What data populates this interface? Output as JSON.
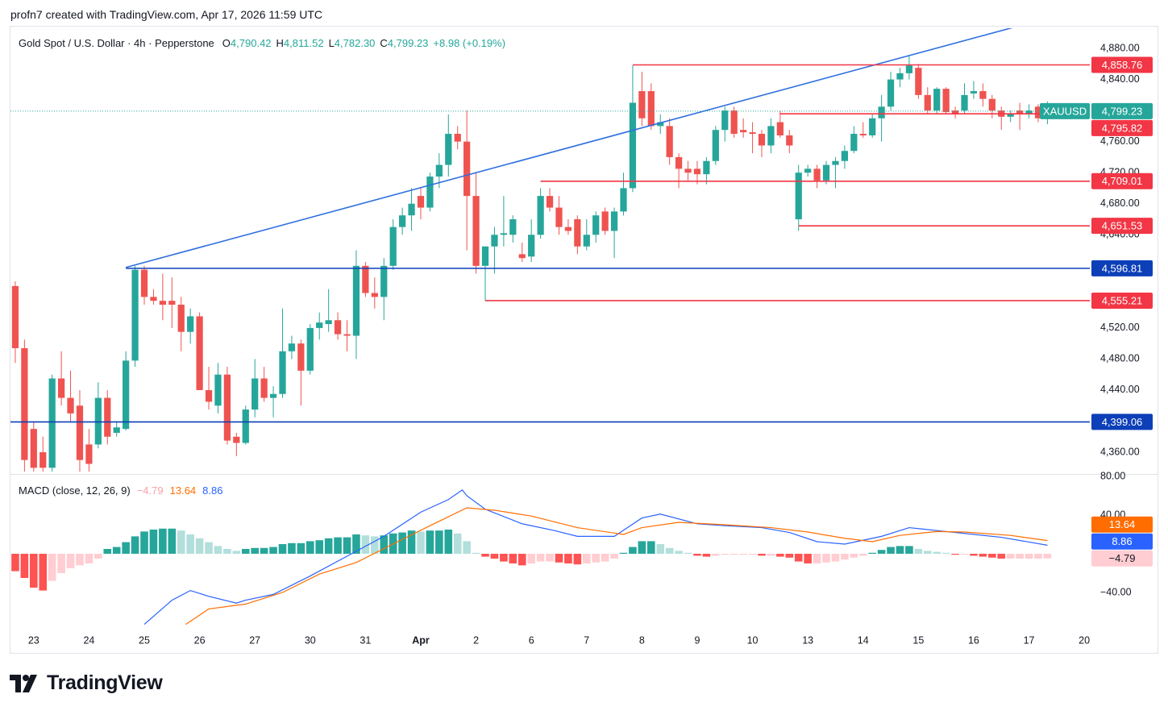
{
  "header": {
    "attribution": "profn7 created with TradingView.com, Apr 17, 2026 11:59 UTC",
    "logo": "TradingView"
  },
  "chart_data": [
    {
      "type": "candlestick",
      "title": "Gold Spot / U.S. Dollar · 4h · Pepperstone",
      "ohlc": [
        {
          "label": "O",
          "value": "4,790.42"
        },
        {
          "label": "H",
          "value": "4,811.52"
        },
        {
          "label": "L",
          "value": "4,782.30"
        },
        {
          "label": "C",
          "value": "4,799.23"
        }
      ],
      "change": "+8.98 (+0.19%)",
      "x": [
        0,
        1,
        2,
        3,
        4,
        5,
        6,
        7,
        8,
        9,
        10,
        11,
        12,
        13,
        14,
        15,
        16,
        17,
        18,
        19,
        20,
        21,
        22,
        23,
        24,
        25,
        26,
        27,
        28,
        29,
        30,
        31,
        32,
        33,
        34,
        35,
        36,
        37,
        38,
        39,
        40,
        41,
        42,
        43,
        44,
        45,
        46,
        47,
        48,
        49,
        50,
        51,
        52,
        53,
        54,
        55,
        56,
        57,
        58,
        59,
        60,
        61,
        62,
        63,
        64,
        65,
        66,
        67,
        68,
        69,
        70,
        71,
        72,
        73,
        74,
        75,
        76,
        77,
        78,
        79,
        80,
        81,
        82,
        83,
        84,
        85,
        86,
        87,
        88,
        89,
        90,
        91,
        92,
        93,
        94,
        95,
        96,
        97,
        98,
        99,
        100,
        101,
        102,
        103,
        104,
        105,
        106,
        107,
        108,
        109,
        110,
        111,
        112
      ],
      "open": [
        4574,
        4494,
        4390,
        4360,
        4340,
        4455,
        4430,
        4420,
        4370,
        4370,
        4430,
        4385,
        4390,
        4478,
        4595,
        4560,
        4555,
        4555,
        4550,
        4515,
        4535,
        4440,
        4420,
        4460,
        4380,
        4372,
        4415,
        4455,
        4430,
        4435,
        4490,
        4500,
        4465,
        4520,
        4525,
        4530,
        4512,
        4510,
        4600,
        4565,
        4560,
        4600,
        4650,
        4665,
        4690,
        4675,
        4715,
        4730,
        4770,
        4760,
        4690,
        4600,
        4625,
        4640,
        4640,
        4615,
        4612,
        4640,
        4690,
        4675,
        4650,
        4660,
        4625,
        4640,
        4670,
        4645,
        4670,
        4700,
        4825,
        4825,
        4780,
        4780,
        4740,
        4725,
        4725,
        4718,
        4735,
        4775,
        4800,
        4775,
        4772,
        4770,
        4755,
        4785,
        4768,
        4660,
        4720,
        4725,
        4710,
        4730,
        4735,
        4748,
        4770,
        4768,
        4790,
        4805,
        4840,
        4848,
        4855,
        4820,
        4800,
        4828,
        4800,
        4800,
        4822,
        4825,
        4815,
        4800,
        4792,
        4800,
        4795,
        4805,
        4790.42
      ],
      "high": [
        4580,
        4505,
        4400,
        4380,
        4460,
        4490,
        4465,
        4440,
        4390,
        4450,
        4440,
        4400,
        4490,
        4600,
        4600,
        4570,
        4590,
        4585,
        4560,
        4545,
        4540,
        4470,
        4475,
        4470,
        4385,
        4420,
        4480,
        4470,
        4445,
        4545,
        4510,
        4505,
        4525,
        4540,
        4570,
        4540,
        4530,
        4620,
        4605,
        4585,
        4610,
        4660,
        4675,
        4700,
        4700,
        4720,
        4745,
        4795,
        4780,
        4800,
        4720,
        4625,
        4650,
        4690,
        4665,
        4630,
        4660,
        4700,
        4700,
        4690,
        4660,
        4665,
        4660,
        4670,
        4675,
        4675,
        4720,
        4858,
        4850,
        4835,
        4795,
        4790,
        4745,
        4735,
        4735,
        4740,
        4780,
        4805,
        4805,
        4790,
        4785,
        4775,
        4790,
        4800,
        4775,
        4730,
        4730,
        4730,
        4735,
        4740,
        4755,
        4780,
        4785,
        4795,
        4820,
        4850,
        4855,
        4870,
        4860,
        4830,
        4830,
        4830,
        4805,
        4835,
        4838,
        4835,
        4820,
        4805,
        4800,
        4810,
        4808,
        4808,
        4811.52
      ],
      "low": [
        4475,
        4335,
        4335,
        4335,
        4335,
        4420,
        4400,
        4335,
        4335,
        4365,
        4370,
        4380,
        4388,
        4470,
        4550,
        4550,
        4530,
        4520,
        4490,
        4500,
        4440,
        4415,
        4410,
        4370,
        4355,
        4370,
        4405,
        4425,
        4405,
        4430,
        4480,
        4420,
        4460,
        4505,
        4515,
        4505,
        4490,
        4480,
        4560,
        4545,
        4530,
        4595,
        4640,
        4645,
        4660,
        4670,
        4700,
        4715,
        4750,
        4620,
        4590,
        4555,
        4590,
        4625,
        4630,
        4605,
        4605,
        4635,
        4670,
        4640,
        4640,
        4615,
        4620,
        4630,
        4640,
        4610,
        4665,
        4695,
        4780,
        4775,
        4770,
        4730,
        4700,
        4710,
        4705,
        4705,
        4730,
        4760,
        4765,
        4765,
        4745,
        4740,
        4745,
        4765,
        4745,
        4645,
        4715,
        4700,
        4705,
        4700,
        4725,
        4745,
        4765,
        4765,
        4760,
        4800,
        4830,
        4840,
        4815,
        4795,
        4795,
        4795,
        4790,
        4795,
        4815,
        4805,
        4790,
        4775,
        4785,
        4775,
        4790,
        4785,
        4782.3
      ],
      "close": [
        4494,
        4350,
        4340,
        4340,
        4455,
        4430,
        4410,
        4350,
        4345,
        4430,
        4380,
        4392,
        4478,
        4595,
        4560,
        4555,
        4550,
        4550,
        4515,
        4535,
        4440,
        4425,
        4460,
        4375,
        4372,
        4415,
        4455,
        4430,
        4435,
        4490,
        4500,
        4465,
        4520,
        4527,
        4530,
        4512,
        4510,
        4600,
        4565,
        4560,
        4600,
        4650,
        4665,
        4680,
        4675,
        4715,
        4730,
        4770,
        4760,
        4690,
        4600,
        4625,
        4640,
        4642,
        4660,
        4610,
        4640,
        4690,
        4675,
        4650,
        4645,
        4625,
        4640,
        4665,
        4645,
        4670,
        4700,
        4810,
        4790,
        4780,
        4785,
        4740,
        4725,
        4720,
        4718,
        4735,
        4775,
        4800,
        4770,
        4772,
        4770,
        4755,
        4780,
        4768,
        4755,
        4720,
        4725,
        4710,
        4730,
        4735,
        4748,
        4770,
        4768,
        4790,
        4805,
        4840,
        4848,
        4858,
        4820,
        4800,
        4828,
        4798,
        4795,
        4820,
        4825,
        4815,
        4800,
        4792,
        4795,
        4795,
        4800,
        4790,
        4799.23
      ],
      "up_color": "#26a69a",
      "down_color": "#ef5350",
      "xlim": [
        -0.52,
        116.6
      ],
      "ylim": [
        4332,
        4906
      ],
      "xticks": [
        {
          "value": 2,
          "label": "23"
        },
        {
          "value": 8,
          "label": "24"
        },
        {
          "value": 14,
          "label": "25"
        },
        {
          "value": 20,
          "label": "26"
        },
        {
          "value": 26,
          "label": "27"
        },
        {
          "value": 32,
          "label": "30"
        },
        {
          "value": 38,
          "label": "31"
        },
        {
          "value": 44,
          "label": "Apr"
        },
        {
          "value": 50,
          "label": "2"
        },
        {
          "value": 56,
          "label": "6"
        },
        {
          "value": 62,
          "label": "7"
        },
        {
          "value": 68,
          "label": "8"
        },
        {
          "value": 74,
          "label": "9"
        },
        {
          "value": 80,
          "label": "10"
        },
        {
          "value": 86,
          "label": "13"
        },
        {
          "value": 92,
          "label": "14"
        },
        {
          "value": 98,
          "label": "15"
        },
        {
          "value": 104,
          "label": "16"
        },
        {
          "value": 110,
          "label": "17"
        },
        {
          "value": 116,
          "label": "20"
        }
      ],
      "yticks": [
        {
          "value": 4360,
          "label": "4,360.00"
        },
        {
          "value": 4440,
          "label": "4,440.00"
        },
        {
          "value": 4480,
          "label": "4,480.00"
        },
        {
          "value": 4520,
          "label": "4,520.00"
        },
        {
          "value": 4640,
          "label": "4,640.00"
        },
        {
          "value": 4680,
          "label": "4,680.00"
        },
        {
          "value": 4720,
          "label": "4,720.00"
        },
        {
          "value": 4760,
          "label": "4,760.00"
        },
        {
          "value": 4840,
          "label": "4,840.00"
        },
        {
          "value": 4880,
          "label": "4,880.00"
        }
      ],
      "levels": [
        {
          "value": 4858.76,
          "label": "4,858.76",
          "color": "#f23645",
          "x": 67
        },
        {
          "value": 4795.82,
          "label": "4,795.82",
          "color": "#f23645",
          "x": 83
        },
        {
          "value": 4709.01,
          "label": "4,709.01",
          "color": "#f23645",
          "x": 57
        },
        {
          "value": 4651.53,
          "label": "4,651.53",
          "color": "#f23645",
          "x": 85
        },
        {
          "value": 4596.81,
          "label": "4,596.81",
          "color": "#0c3fb8",
          "x": 12
        },
        {
          "value": 4555.21,
          "label": "4,555.21",
          "color": "#f23645",
          "x": 51
        },
        {
          "value": 4399.06,
          "label": "4,399.06",
          "color": "#0c3fb8",
          "x": -0.52
        }
      ],
      "trendline": {
        "x": [
          12,
          108.6
        ],
        "values": [
          4598,
          4908
        ],
        "color": "#2f6fe0"
      },
      "last": {
        "symbol": "XAUUSD",
        "value": 4799.23,
        "label": "4,799.23",
        "color": "#26a69a"
      }
    },
    {
      "type": "macd",
      "title": "MACD (close, 12, 26, 9)",
      "ylim": [
        -77.5,
        80.8
      ],
      "yticks": [
        {
          "value": 80,
          "label": "80.00"
        },
        {
          "value": 40,
          "label": "40.00"
        },
        {
          "value": -40,
          "label": "−40.00"
        }
      ],
      "histogram": {
        "values": [
          -18,
          -25,
          -35,
          -38,
          -28,
          -20,
          -15,
          -12,
          -10,
          -5,
          5,
          7,
          12,
          18,
          23,
          25,
          26,
          26,
          24,
          20,
          16,
          12,
          8,
          5,
          3,
          5,
          6,
          6,
          7,
          10,
          11,
          11,
          13,
          14,
          16,
          17,
          17,
          20,
          19,
          18,
          19,
          21,
          22,
          24,
          23,
          24,
          24,
          25,
          21,
          13,
          1,
          -3,
          -5,
          -8,
          -10,
          -12,
          -10,
          -8,
          -8,
          -9,
          -10,
          -11,
          -10,
          -9,
          -8,
          -5,
          1,
          7,
          13,
          13,
          10,
          6,
          3,
          1,
          -2,
          -3,
          -2,
          -1,
          -1,
          -1,
          -1,
          -2,
          -2,
          -3,
          -4,
          -8,
          -10,
          -10,
          -9,
          -8,
          -6,
          -4,
          -2,
          1,
          4,
          7,
          8,
          8,
          5,
          3,
          2,
          1,
          -1,
          -1,
          -2,
          -3,
          -4,
          -5,
          -5,
          -5,
          -5,
          -5,
          -4.79
        ],
        "last_label": "−4.79",
        "label_color": "#ffcdd2",
        "text_color": "#f7a1a8",
        "colors": {
          "grow_above": "#26a69a",
          "fall_above": "#b2dfdb",
          "grow_below": "#ffcdd2",
          "fall_below": "#ff5252"
        }
      },
      "series": [
        {
          "color": "#2962ff",
          "last_label": "8.86",
          "x": [
            14,
            17,
            19,
            21,
            24,
            25,
            28,
            32,
            36,
            40,
            44,
            47,
            48.5,
            49,
            51,
            55,
            58.5,
            61,
            65,
            68,
            70,
            74,
            77,
            81,
            84,
            87,
            90,
            94,
            97,
            100,
            103,
            107,
            112
          ],
          "values": [
            -73,
            -48,
            -38,
            -44,
            -51,
            -48,
            -42,
            -23,
            -2.5,
            18,
            43,
            56,
            66,
            60,
            46,
            31,
            24,
            18,
            18,
            37,
            41,
            31,
            29,
            27,
            22,
            12.5,
            10,
            18,
            27,
            24,
            21,
            17,
            8.86
          ]
        },
        {
          "color": "#ff6d00",
          "last_label": "13.64",
          "x": [
            18.5,
            21,
            25,
            29,
            33,
            37,
            41.5,
            45,
            49,
            52,
            56,
            61,
            66,
            68,
            72,
            77,
            82,
            86,
            90,
            93,
            96,
            100,
            103,
            108,
            112
          ],
          "values": [
            -73,
            -57,
            -52,
            -40,
            -21,
            -9,
            12.5,
            29,
            47.5,
            45,
            39,
            27,
            20,
            27,
            32.5,
            30,
            27,
            22.5,
            16,
            12.5,
            19,
            23,
            22.5,
            19,
            13.64
          ]
        }
      ]
    }
  ]
}
